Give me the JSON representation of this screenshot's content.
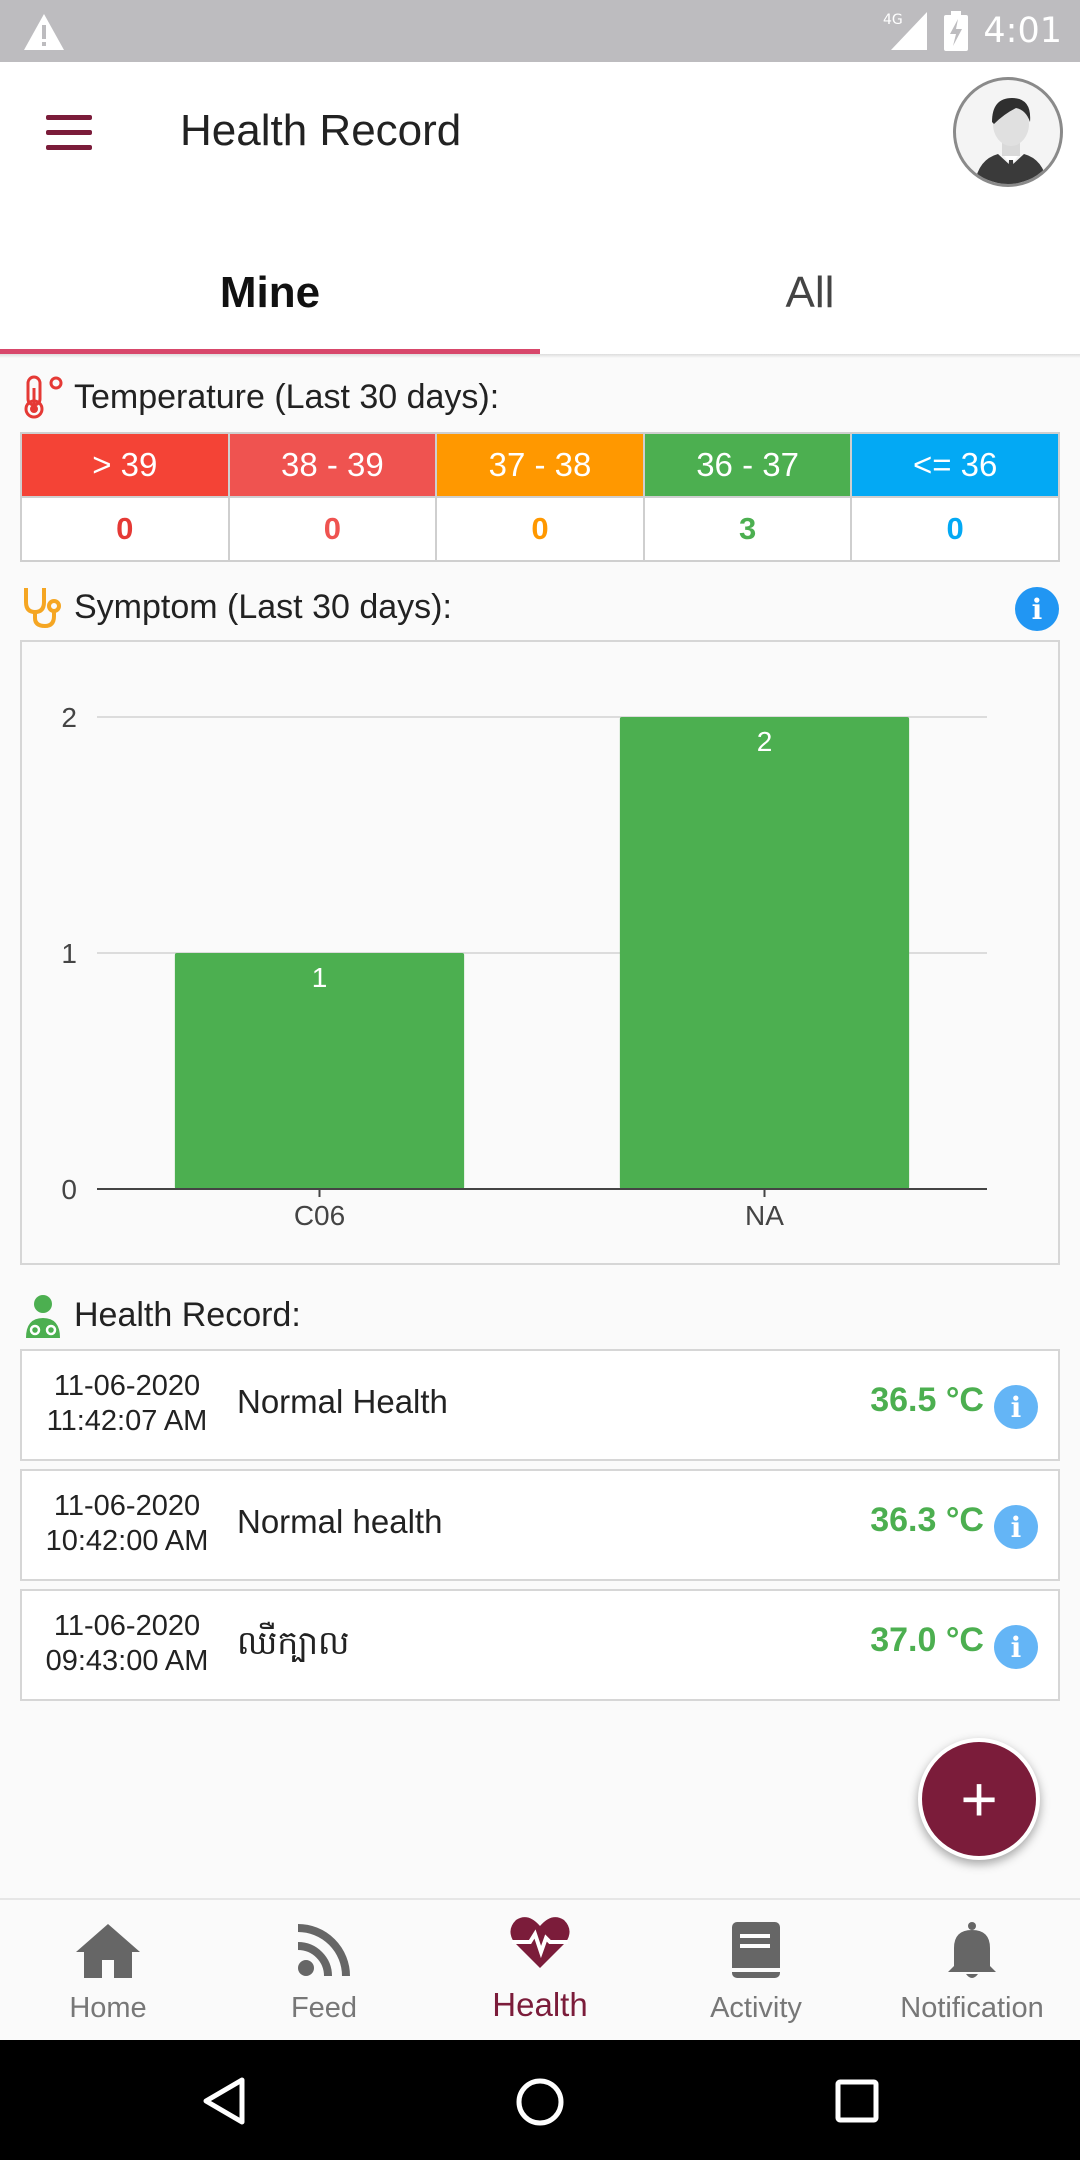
{
  "status_bar": {
    "network": "4G",
    "time": "4:01"
  },
  "app_bar": {
    "title": "Health Record"
  },
  "tabs": [
    {
      "label": "Mine",
      "active": true
    },
    {
      "label": "All",
      "active": false
    }
  ],
  "temperature": {
    "title": "Temperature (Last 30 days):",
    "columns": [
      {
        "range": "> 39",
        "count": "0",
        "color": "#f44336",
        "text_color": "#e53935"
      },
      {
        "range": "38 - 39",
        "count": "0",
        "color": "#ef5350",
        "text_color": "#ef5350"
      },
      {
        "range": "37 - 38",
        "count": "0",
        "color": "#ff9800",
        "text_color": "#ff9800"
      },
      {
        "range": "36 - 37",
        "count": "3",
        "color": "#4caf50",
        "text_color": "#4caf50"
      },
      {
        "range": "<= 36",
        "count": "0",
        "color": "#03a9f4",
        "text_color": "#03a9f4"
      }
    ]
  },
  "symptom": {
    "title": "Symptom (Last 30 days):"
  },
  "chart_data": {
    "type": "bar",
    "categories": [
      "C06",
      "NA"
    ],
    "values": [
      1,
      2
    ],
    "data_labels": [
      "1",
      "2"
    ],
    "title": "",
    "xlabel": "",
    "ylabel": "",
    "ylim": [
      0,
      2
    ],
    "yticks": [
      "0",
      "1",
      "2"
    ],
    "grid": true,
    "bar_color": "#4caf50"
  },
  "health_record": {
    "title": "Health Record:",
    "records": [
      {
        "date": "11-06-2020",
        "time": "11:42:07 AM",
        "note": "Normal Health",
        "temp": "36.5 °C"
      },
      {
        "date": "11-06-2020",
        "time": "10:42:00 AM",
        "note": "Normal health",
        "temp": "36.3 °C"
      },
      {
        "date": "11-06-2020",
        "time": "09:43:00 AM",
        "note": "ឈឺក្បាល",
        "temp": "37.0 °C"
      }
    ]
  },
  "fab": {
    "label": "+"
  },
  "bottom_nav": [
    {
      "label": "Home",
      "icon": "home-icon"
    },
    {
      "label": "Feed",
      "icon": "rss-icon"
    },
    {
      "label": "Health",
      "icon": "heartbeat-icon",
      "active": true
    },
    {
      "label": "Activity",
      "icon": "book-icon"
    },
    {
      "label": "Notification",
      "icon": "bell-icon"
    }
  ],
  "colors": {
    "primary": "#7b1c3a",
    "accent": "#d8476b",
    "success": "#4caf50",
    "info": "#2196f3"
  }
}
